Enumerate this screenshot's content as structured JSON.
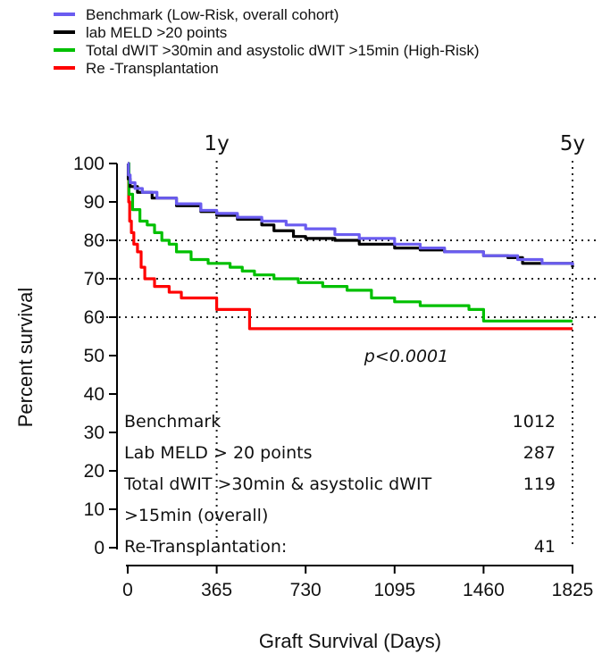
{
  "chart_data": {
    "type": "line",
    "step": true,
    "xlabel": "Graft Survival (Days)",
    "ylabel": "Percent survival",
    "xlim": [
      0,
      1825
    ],
    "ylim": [
      0,
      100
    ],
    "xticks": [
      0,
      365,
      730,
      1095,
      1460,
      1825
    ],
    "yticks": [
      0,
      10,
      20,
      30,
      40,
      50,
      60,
      70,
      80,
      90,
      100
    ],
    "grid": false,
    "legend_position": "top-left",
    "vertical_markers": [
      {
        "x": 365,
        "label": "1y"
      },
      {
        "x": 1825,
        "label": "5y"
      }
    ],
    "horizontal_reference_lines": [
      80,
      70,
      60
    ],
    "p_value": "p<0.0001",
    "series": [
      {
        "name": "Benchmark (Low-Risk, overall cohort)",
        "color": "#6a5cf0",
        "points": [
          [
            0,
            100
          ],
          [
            3,
            97
          ],
          [
            10,
            95
          ],
          [
            30,
            93.5
          ],
          [
            60,
            92.5
          ],
          [
            120,
            91
          ],
          [
            200,
            89.5
          ],
          [
            300,
            87.8
          ],
          [
            365,
            87
          ],
          [
            450,
            86
          ],
          [
            550,
            85
          ],
          [
            650,
            84
          ],
          [
            730,
            83
          ],
          [
            850,
            81.5
          ],
          [
            950,
            80.5
          ],
          [
            1095,
            79
          ],
          [
            1200,
            78
          ],
          [
            1300,
            77
          ],
          [
            1460,
            76
          ],
          [
            1600,
            75
          ],
          [
            1700,
            74
          ],
          [
            1825,
            73.5
          ]
        ]
      },
      {
        "name": "lab MELD >20 points",
        "color": "#000000",
        "points": [
          [
            0,
            100
          ],
          [
            2,
            96
          ],
          [
            10,
            94
          ],
          [
            40,
            92.5
          ],
          [
            100,
            91
          ],
          [
            200,
            89
          ],
          [
            300,
            87.5
          ],
          [
            365,
            86.5
          ],
          [
            450,
            85.5
          ],
          [
            550,
            84
          ],
          [
            600,
            82.5
          ],
          [
            680,
            81
          ],
          [
            730,
            80.5
          ],
          [
            850,
            80
          ],
          [
            950,
            79
          ],
          [
            1095,
            78
          ],
          [
            1200,
            77.5
          ],
          [
            1300,
            77
          ],
          [
            1460,
            76
          ],
          [
            1560,
            75.5
          ],
          [
            1620,
            74
          ],
          [
            1700,
            74
          ],
          [
            1825,
            73
          ]
        ]
      },
      {
        "name": "Total dWIT >30min and asystolic dWIT >15min (High-Risk)",
        "color": "#00c000",
        "points": [
          [
            0,
            100
          ],
          [
            5,
            92
          ],
          [
            20,
            88
          ],
          [
            50,
            85
          ],
          [
            80,
            84
          ],
          [
            110,
            82
          ],
          [
            140,
            80
          ],
          [
            170,
            79
          ],
          [
            200,
            77
          ],
          [
            260,
            75
          ],
          [
            330,
            74
          ],
          [
            365,
            74
          ],
          [
            420,
            73
          ],
          [
            470,
            72
          ],
          [
            520,
            71
          ],
          [
            600,
            70
          ],
          [
            700,
            69
          ],
          [
            800,
            68
          ],
          [
            900,
            67
          ],
          [
            1000,
            65
          ],
          [
            1095,
            64
          ],
          [
            1200,
            63
          ],
          [
            1400,
            62
          ],
          [
            1460,
            59
          ],
          [
            1825,
            59
          ]
        ]
      },
      {
        "name": "Re -Transplantation",
        "color": "#ff0000",
        "points": [
          [
            0,
            100
          ],
          [
            4,
            90
          ],
          [
            8,
            85
          ],
          [
            15,
            82
          ],
          [
            25,
            79
          ],
          [
            40,
            77
          ],
          [
            55,
            73
          ],
          [
            70,
            70
          ],
          [
            110,
            68
          ],
          [
            170,
            66.5
          ],
          [
            220,
            65
          ],
          [
            365,
            65
          ],
          [
            365,
            62
          ],
          [
            500,
            62
          ],
          [
            500,
            57
          ],
          [
            1825,
            57
          ]
        ]
      }
    ],
    "n_table": [
      {
        "label": "Benchmark",
        "n": "1012"
      },
      {
        "label": "Lab MELD > 20 points",
        "n": "287"
      },
      {
        "label": "Total dWIT >30min & asystolic dWIT",
        "n": "119"
      },
      {
        "label": ">15min (overall)",
        "n": ""
      },
      {
        "label": "Re-Transplantation:",
        "n": "41"
      }
    ]
  }
}
